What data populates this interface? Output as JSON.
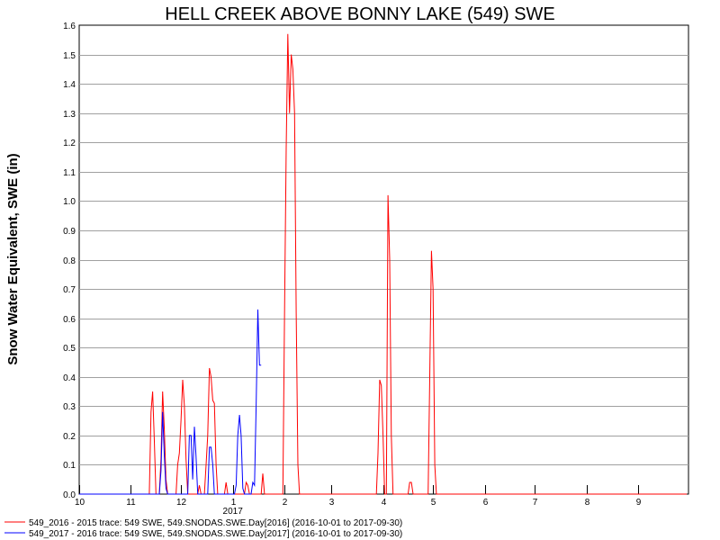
{
  "chart_data": {
    "type": "line",
    "title": "HELL CREEK ABOVE BONNY LAKE (549) SWE",
    "ylabel": "Snow Water Equivalent, SWE (in)",
    "xlabel": "",
    "ylim": [
      0,
      1.6
    ],
    "yticks": [
      "0.0",
      "0.1",
      "0.2",
      "0.3",
      "0.4",
      "0.5",
      "0.6",
      "0.7",
      "0.8",
      "0.9",
      "1.0",
      "1.1",
      "1.2",
      "1.3",
      "1.4",
      "1.5",
      "1.6"
    ],
    "xlim": [
      "2016-10-01",
      "2017-10-01"
    ],
    "xticks": [
      {
        "label": "10",
        "date": "2016-10-01"
      },
      {
        "label": "11",
        "date": "2016-11-01"
      },
      {
        "label": "12",
        "date": "2016-12-01"
      },
      {
        "label": "1",
        "date": "2017-01-01"
      },
      {
        "label": "2",
        "date": "2017-02-01"
      },
      {
        "label": "3",
        "date": "2017-03-01"
      },
      {
        "label": "4",
        "date": "2017-04-01"
      },
      {
        "label": "5",
        "date": "2017-05-01"
      },
      {
        "label": "6",
        "date": "2017-06-01"
      },
      {
        "label": "7",
        "date": "2017-07-01"
      },
      {
        "label": "8",
        "date": "2017-08-01"
      },
      {
        "label": "9",
        "date": "2017-09-01"
      }
    ],
    "year_label": {
      "label": "2017",
      "date": "2017-01-01"
    },
    "grid": true,
    "legend_position": "bottom-left",
    "series": [
      {
        "name": "549_2016 - 2015 trace: 549 SWE, 549.SNODAS.SWE.Day[2016] (2016-10-01 to 2017-09-30)",
        "color": "#ff0000",
        "points": [
          [
            "2016-10-01",
            0
          ],
          [
            "2016-11-12",
            0
          ],
          [
            "2016-11-13",
            0.28
          ],
          [
            "2016-11-14",
            0.35
          ],
          [
            "2016-11-15",
            0.18
          ],
          [
            "2016-11-16",
            0
          ],
          [
            "2016-11-18",
            0
          ],
          [
            "2016-11-19",
            0.12
          ],
          [
            "2016-11-20",
            0.35
          ],
          [
            "2016-11-21",
            0.22
          ],
          [
            "2016-11-22",
            0.05
          ],
          [
            "2016-11-23",
            0
          ],
          [
            "2016-11-28",
            0
          ],
          [
            "2016-11-29",
            0.1
          ],
          [
            "2016-11-30",
            0.14
          ],
          [
            "2016-12-01",
            0.25
          ],
          [
            "2016-12-02",
            0.39
          ],
          [
            "2016-12-03",
            0.3
          ],
          [
            "2016-12-04",
            0.12
          ],
          [
            "2016-12-05",
            0
          ],
          [
            "2016-12-11",
            0
          ],
          [
            "2016-12-12",
            0.03
          ],
          [
            "2016-12-13",
            0
          ],
          [
            "2016-12-15",
            0
          ],
          [
            "2016-12-16",
            0.1
          ],
          [
            "2016-12-17",
            0.2
          ],
          [
            "2016-12-18",
            0.43
          ],
          [
            "2016-12-19",
            0.4
          ],
          [
            "2016-12-20",
            0.32
          ],
          [
            "2016-12-21",
            0.31
          ],
          [
            "2016-12-22",
            0.1
          ],
          [
            "2016-12-23",
            0
          ],
          [
            "2016-12-27",
            0
          ],
          [
            "2016-12-28",
            0.04
          ],
          [
            "2016-12-29",
            0
          ],
          [
            "2017-01-08",
            0
          ],
          [
            "2017-01-09",
            0.04
          ],
          [
            "2017-01-10",
            0.03
          ],
          [
            "2017-01-11",
            0
          ],
          [
            "2017-01-18",
            0
          ],
          [
            "2017-01-19",
            0.07
          ],
          [
            "2017-01-20",
            0
          ],
          [
            "2017-01-31",
            0
          ],
          [
            "2017-02-01",
            0.6
          ],
          [
            "2017-02-02",
            1.18
          ],
          [
            "2017-02-03",
            1.57
          ],
          [
            "2017-02-04",
            1.3
          ],
          [
            "2017-02-05",
            1.5
          ],
          [
            "2017-02-06",
            1.45
          ],
          [
            "2017-02-07",
            1.3
          ],
          [
            "2017-02-08",
            0.62
          ],
          [
            "2017-02-09",
            0.1
          ],
          [
            "2017-02-10",
            0
          ],
          [
            "2017-03-28",
            0
          ],
          [
            "2017-03-29",
            0.14
          ],
          [
            "2017-03-30",
            0.39
          ],
          [
            "2017-03-31",
            0.37
          ],
          [
            "2017-04-01",
            0.2
          ],
          [
            "2017-04-02",
            0
          ],
          [
            "2017-04-03",
            0
          ],
          [
            "2017-04-04",
            1.02
          ],
          [
            "2017-04-05",
            0.8
          ],
          [
            "2017-04-06",
            0.2
          ],
          [
            "2017-04-07",
            0
          ],
          [
            "2017-04-16",
            0
          ],
          [
            "2017-04-17",
            0.04
          ],
          [
            "2017-04-18",
            0.04
          ],
          [
            "2017-04-19",
            0
          ],
          [
            "2017-04-28",
            0
          ],
          [
            "2017-04-29",
            0.4
          ],
          [
            "2017-04-30",
            0.83
          ],
          [
            "2017-05-01",
            0.7
          ],
          [
            "2017-05-02",
            0.1
          ],
          [
            "2017-05-03",
            0
          ],
          [
            "2017-09-30",
            0
          ]
        ]
      },
      {
        "name": "549_2017 - 2016 trace: 549 SWE, 549.SNODAS.SWE.Day[2017] (2016-10-01 to 2017-09-30)",
        "color": "#0000ff",
        "points": [
          [
            "2016-10-01",
            0
          ],
          [
            "2016-11-18",
            0
          ],
          [
            "2016-11-19",
            0.08
          ],
          [
            "2016-11-20",
            0.28
          ],
          [
            "2016-11-21",
            0.13
          ],
          [
            "2016-11-22",
            0.02
          ],
          [
            "2016-11-23",
            0
          ],
          [
            "2016-12-05",
            0
          ],
          [
            "2016-12-06",
            0.2
          ],
          [
            "2016-12-07",
            0.2
          ],
          [
            "2016-12-08",
            0.05
          ],
          [
            "2016-12-09",
            0.23
          ],
          [
            "2016-12-10",
            0.13
          ],
          [
            "2016-12-11",
            0
          ],
          [
            "2016-12-17",
            0
          ],
          [
            "2016-12-18",
            0.16
          ],
          [
            "2016-12-19",
            0.16
          ],
          [
            "2016-12-20",
            0.1
          ],
          [
            "2016-12-21",
            0
          ],
          [
            "2017-01-02",
            0
          ],
          [
            "2017-01-03",
            0.03
          ],
          [
            "2017-01-04",
            0.2
          ],
          [
            "2017-01-05",
            0.27
          ],
          [
            "2017-01-06",
            0.2
          ],
          [
            "2017-01-07",
            0.02
          ],
          [
            "2017-01-08",
            0
          ],
          [
            "2017-01-12",
            0
          ],
          [
            "2017-01-13",
            0.04
          ],
          [
            "2017-01-14",
            0.03
          ],
          [
            "2017-01-15",
            0.3
          ],
          [
            "2017-01-16",
            0.63
          ],
          [
            "2017-01-17",
            0.44
          ],
          [
            "2017-01-18",
            0.44
          ]
        ]
      }
    ]
  }
}
